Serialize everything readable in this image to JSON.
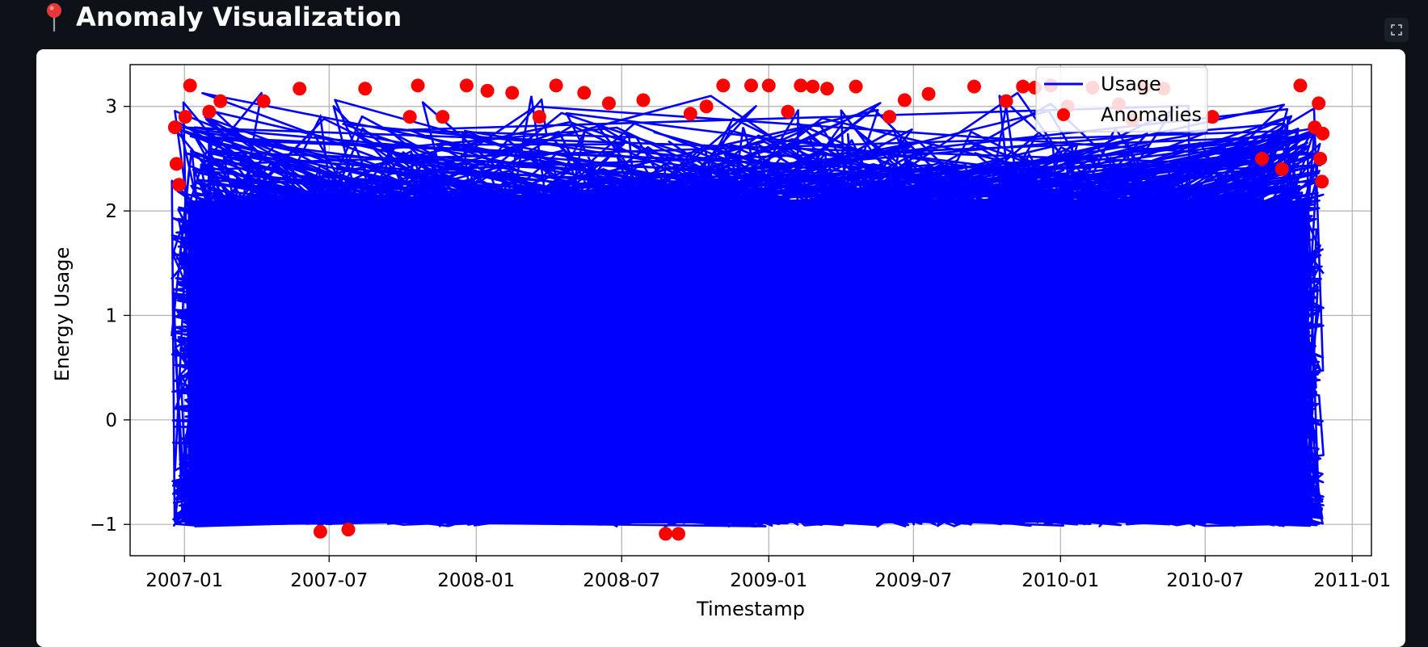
{
  "header": {
    "title": "Anomaly Visualization",
    "icon": "pushpin-icon",
    "icon_color": "#e5383b"
  },
  "toolbar": {
    "fullscreen_icon": "fullscreen-icon"
  },
  "chart_data": {
    "type": "line",
    "title": "",
    "xlabel": "Timestamp",
    "ylabel": "Energy Usage",
    "xlim": [
      "2006-10-25",
      "2011-01-25"
    ],
    "ylim": [
      -1.3,
      3.4
    ],
    "x_ticks": [
      "2007-01",
      "2007-07",
      "2008-01",
      "2008-07",
      "2009-01",
      "2009-07",
      "2010-01",
      "2010-07",
      "2011-01"
    ],
    "y_ticks": [
      -1,
      0,
      1,
      2,
      3
    ],
    "y_tick_labels": [
      "−1",
      "0",
      "1",
      "2",
      "3"
    ],
    "grid": true,
    "legend": "top-right",
    "series": [
      {
        "name": "Usage",
        "kind": "line",
        "color": "#0000ff",
        "x_range": [
          "2006-12-16",
          "2010-11-26"
        ],
        "y_range": [
          -1.02,
          3.2
        ],
        "x": [
          "2006-12-16",
          "2007-01-10",
          "2007-02-20",
          "2007-04-15",
          "2007-06-20",
          "2007-08-25",
          "2007-10-30",
          "2008-01-05",
          "2008-03-10",
          "2008-05-15",
          "2008-07-20",
          "2008-09-25",
          "2008-11-30",
          "2009-02-05",
          "2009-04-10",
          "2009-06-15",
          "2009-08-20",
          "2009-10-25",
          "2010-01-01",
          "2010-03-05",
          "2010-05-10",
          "2010-07-15",
          "2010-09-20",
          "2010-11-26"
        ],
        "y": [
          0.8,
          2.6,
          -0.7,
          1.9,
          2.9,
          -0.8,
          2.4,
          0.3,
          3.1,
          -0.5,
          2.2,
          -0.9,
          2.8,
          1.1,
          -0.6,
          2.7,
          0.2,
          3.0,
          -0.7,
          2.5,
          1.6,
          -0.8,
          2.1,
          1.4
        ]
      },
      {
        "name": "Anomalies",
        "kind": "scatter",
        "color": "#ff0000",
        "points": [
          [
            "2006-12-20",
            2.8
          ],
          [
            "2006-12-22",
            2.45
          ],
          [
            "2006-12-25",
            2.25
          ],
          [
            "2007-01-02",
            2.9
          ],
          [
            "2007-01-08",
            3.2
          ],
          [
            "2007-02-01",
            2.95
          ],
          [
            "2007-02-15",
            3.05
          ],
          [
            "2007-04-10",
            3.05
          ],
          [
            "2007-05-25",
            3.17
          ],
          [
            "2007-06-20",
            -1.07
          ],
          [
            "2007-07-25",
            -1.05
          ],
          [
            "2007-08-15",
            3.17
          ],
          [
            "2007-10-10",
            2.9
          ],
          [
            "2007-10-20",
            3.2
          ],
          [
            "2007-11-20",
            2.9
          ],
          [
            "2007-12-20",
            3.2
          ],
          [
            "2008-01-15",
            3.15
          ],
          [
            "2008-02-15",
            3.13
          ],
          [
            "2008-03-20",
            2.9
          ],
          [
            "2008-04-10",
            3.2
          ],
          [
            "2008-05-15",
            3.13
          ],
          [
            "2008-06-15",
            3.03
          ],
          [
            "2008-07-28",
            3.06
          ],
          [
            "2008-08-25",
            -1.09
          ],
          [
            "2008-09-10",
            -1.09
          ],
          [
            "2008-09-25",
            2.93
          ],
          [
            "2008-10-15",
            3.0
          ],
          [
            "2008-11-05",
            3.2
          ],
          [
            "2008-12-10",
            3.2
          ],
          [
            "2009-01-01",
            3.2
          ],
          [
            "2009-01-25",
            2.95
          ],
          [
            "2009-02-10",
            3.2
          ],
          [
            "2009-02-25",
            3.19
          ],
          [
            "2009-03-15",
            3.17
          ],
          [
            "2009-04-20",
            3.19
          ],
          [
            "2009-06-01",
            2.9
          ],
          [
            "2009-06-20",
            3.06
          ],
          [
            "2009-07-20",
            3.12
          ],
          [
            "2009-09-15",
            3.19
          ],
          [
            "2009-10-25",
            3.05
          ],
          [
            "2009-11-15",
            3.19
          ],
          [
            "2009-11-30",
            3.18
          ],
          [
            "2009-12-20",
            3.2
          ],
          [
            "2010-01-10",
            3.0
          ],
          [
            "2010-02-10",
            3.18
          ],
          [
            "2010-03-15",
            3.02
          ],
          [
            "2010-04-01",
            2.87
          ],
          [
            "2010-04-15",
            3.18
          ],
          [
            "2010-05-10",
            3.17
          ],
          [
            "2010-07-10",
            2.9
          ],
          [
            "2010-09-10",
            2.5
          ],
          [
            "2010-10-05",
            2.4
          ],
          [
            "2010-10-28",
            3.2
          ],
          [
            "2010-11-15",
            2.8
          ],
          [
            "2010-11-20",
            3.03
          ],
          [
            "2010-11-22",
            2.5
          ],
          [
            "2010-11-24",
            2.28
          ],
          [
            "2010-11-25",
            2.74
          ]
        ]
      }
    ]
  }
}
